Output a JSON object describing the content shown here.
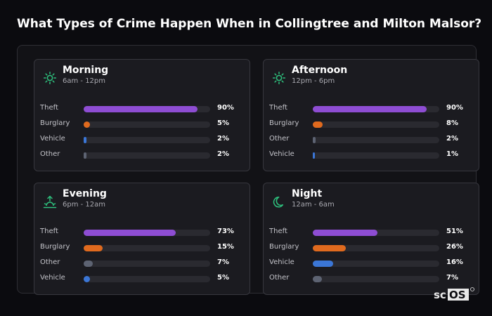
{
  "header": {
    "title": "What Types of Crime Happen When in Collingtree and Milton Malsor?"
  },
  "colors": {
    "Theft": "#8e4dd3",
    "Burglary": "#e06a1e",
    "Vehicle": "#3b76d6",
    "Other": "#5d6372",
    "icon": "#2ec27e"
  },
  "chart_data": {
    "type": "bar",
    "value_unit": "%",
    "panels": [
      {
        "title": "Morning",
        "subtitle": "6am - 12pm",
        "icon": "sun-icon",
        "rows": [
          {
            "label": "Theft",
            "value": 90,
            "pct": "90%"
          },
          {
            "label": "Burglary",
            "value": 5,
            "pct": "5%"
          },
          {
            "label": "Vehicle",
            "value": 2,
            "pct": "2%"
          },
          {
            "label": "Other",
            "value": 2,
            "pct": "2%"
          }
        ]
      },
      {
        "title": "Afternoon",
        "subtitle": "12pm - 6pm",
        "icon": "sun-icon",
        "rows": [
          {
            "label": "Theft",
            "value": 90,
            "pct": "90%"
          },
          {
            "label": "Burglary",
            "value": 8,
            "pct": "8%"
          },
          {
            "label": "Other",
            "value": 2,
            "pct": "2%"
          },
          {
            "label": "Vehicle",
            "value": 1,
            "pct": "1%"
          }
        ]
      },
      {
        "title": "Evening",
        "subtitle": "6pm - 12am",
        "icon": "sunset-icon",
        "rows": [
          {
            "label": "Theft",
            "value": 73,
            "pct": "73%"
          },
          {
            "label": "Burglary",
            "value": 15,
            "pct": "15%"
          },
          {
            "label": "Other",
            "value": 7,
            "pct": "7%"
          },
          {
            "label": "Vehicle",
            "value": 5,
            "pct": "5%"
          }
        ]
      },
      {
        "title": "Night",
        "subtitle": "12am - 6am",
        "icon": "moon-icon",
        "rows": [
          {
            "label": "Theft",
            "value": 51,
            "pct": "51%"
          },
          {
            "label": "Burglary",
            "value": 26,
            "pct": "26%"
          },
          {
            "label": "Vehicle",
            "value": 16,
            "pct": "16%"
          },
          {
            "label": "Other",
            "value": 7,
            "pct": "7%"
          }
        ]
      }
    ]
  }
}
